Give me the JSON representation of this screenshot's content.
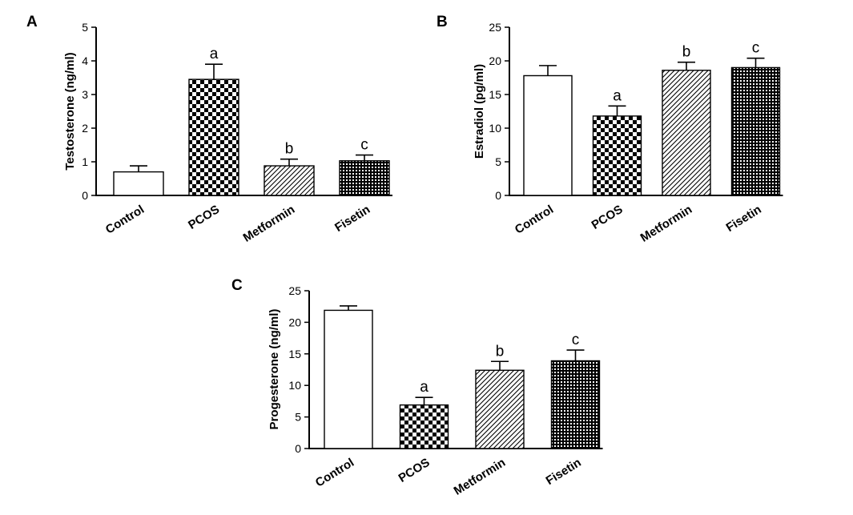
{
  "chart_data": [
    {
      "panel": "A",
      "type": "bar",
      "ylabel": "Testosterone (ng/ml)",
      "ylim": [
        0,
        5
      ],
      "yticks": [
        0,
        1,
        2,
        3,
        4,
        5
      ],
      "categories": [
        "Control",
        "PCOS",
        "Metformin",
        "Fisetin"
      ],
      "values": [
        0.7,
        3.45,
        0.88,
        1.03
      ],
      "errors": [
        0.18,
        0.45,
        0.2,
        0.17
      ],
      "significance": [
        "",
        "a",
        "b",
        "c"
      ]
    },
    {
      "panel": "B",
      "type": "bar",
      "ylabel": "Estradiol (pg/ml)",
      "ylim": [
        0,
        25
      ],
      "yticks": [
        0,
        5,
        10,
        15,
        20,
        25
      ],
      "categories": [
        "Control",
        "PCOS",
        "Metformin",
        "Fisetin"
      ],
      "values": [
        17.8,
        11.8,
        18.6,
        19.0
      ],
      "errors": [
        1.5,
        1.5,
        1.2,
        1.4
      ],
      "significance": [
        "",
        "a",
        "b",
        "c"
      ]
    },
    {
      "panel": "C",
      "type": "bar",
      "ylabel": "Progesterone (ng/ml)",
      "ylim": [
        0,
        25
      ],
      "yticks": [
        0,
        5,
        10,
        15,
        20,
        25
      ],
      "categories": [
        "Control",
        "PCOS",
        "Metformin",
        "Fisetin"
      ],
      "values": [
        21.9,
        6.9,
        12.4,
        13.9
      ],
      "errors": [
        0.7,
        1.2,
        1.4,
        1.7
      ],
      "significance": [
        "",
        "a",
        "b",
        "c"
      ]
    }
  ],
  "bar_patterns": [
    "white",
    "checker",
    "diagonal",
    "dense-dot"
  ]
}
